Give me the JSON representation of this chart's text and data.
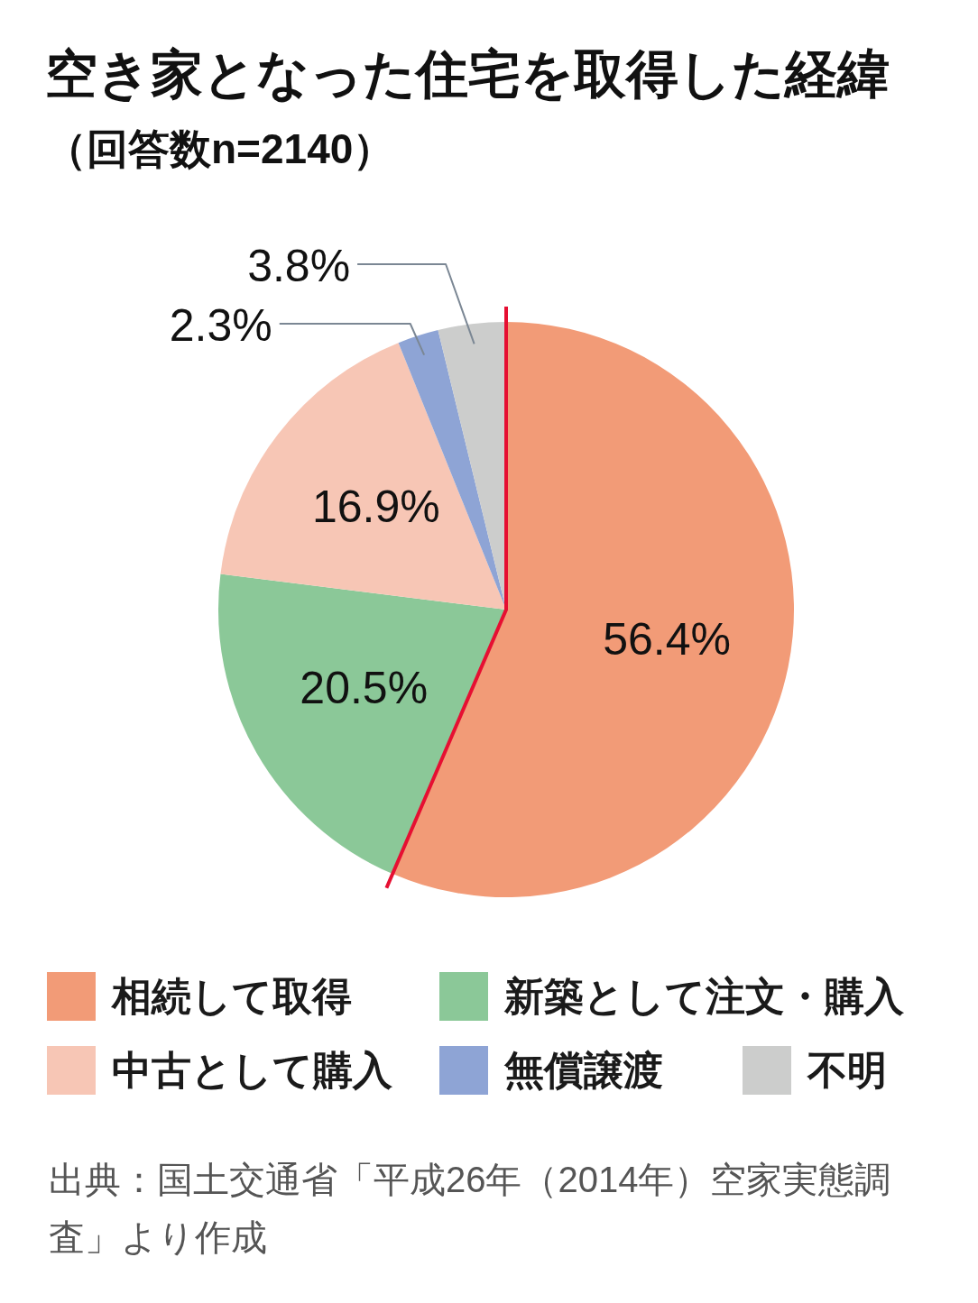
{
  "chart_data": {
    "type": "pie",
    "title": "空き家となった住宅を取得した経緯",
    "subtitle": "（回答数n=2140）",
    "categories": [
      "相続して取得",
      "新築として注文・購入",
      "中古として購入",
      "無償譲渡",
      "不明"
    ],
    "values": [
      56.4,
      20.5,
      16.9,
      2.3,
      3.8
    ],
    "colors": [
      "#f29b77",
      "#8bc898",
      "#f7c6b5",
      "#8ea4d5",
      "#cccdcc"
    ],
    "value_labels": [
      "56.4%",
      "20.5%",
      "16.9%",
      "2.3%",
      "3.8%"
    ],
    "legend": "bottom",
    "annotations": [
      "出典：国土交通省「平成26年（2014年）空家実態調査」より作成"
    ]
  }
}
